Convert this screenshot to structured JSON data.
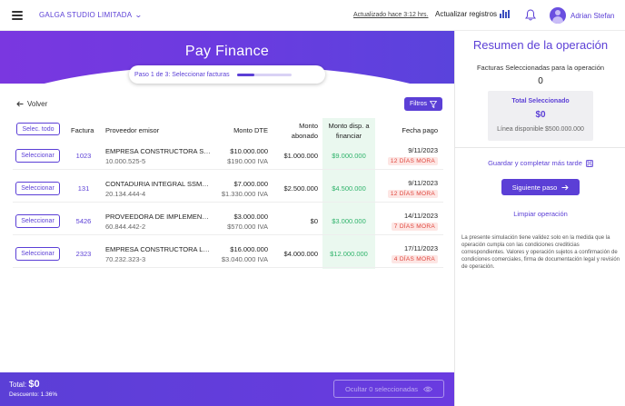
{
  "topbar": {
    "company": "GALGA STUDIO LIMITADA",
    "updated": "Actualizado hace 3:12 hrs.",
    "update_button": "Actualizar registros",
    "user_name": "Adrian Stefan"
  },
  "hero": {
    "title": "Pay Finance",
    "step_label": "Paso 1 de 3: Seleccionar facturas",
    "step_progress": 0.33
  },
  "toolbar": {
    "back_label": "Volver",
    "filter_label": "Filtros"
  },
  "table": {
    "select_all_label": "Selec. todo",
    "headers": {
      "factura": "Factura",
      "proveedor": "Proveedor emisor",
      "monto_dte": "Monto DTE",
      "abonado_1": "Monto",
      "abonado_2": "abonado",
      "disp_1": "Monto disp. a",
      "disp_2": "financiar",
      "fecha": "Fecha pago"
    },
    "rows": [
      {
        "button": "Seleccionar",
        "factura": "1023",
        "proveedor": "EMPRESA CONSTRUCTORA SPA",
        "rut": "10.000.525-5",
        "monto_dte": "$10.000.000",
        "iva": "$190.000 IVA",
        "abonado": "$1.000.000",
        "disponible": "$9.000.000",
        "fecha": "9/11/2023",
        "mora": "12 DÍAS MORA"
      },
      {
        "button": "Seleccionar",
        "factura": "131",
        "proveedor": "CONTADURIA INTEGRAL SSMM LTDA",
        "rut": "20.134.444-4",
        "monto_dte": "$7.000.000",
        "iva": "$1.330.000 IVA",
        "abonado": "$2.500.000",
        "disponible": "$4.500.000",
        "fecha": "9/11/2023",
        "mora": "12 DÍAS MORA"
      },
      {
        "button": "Seleccionar",
        "factura": "5426",
        "proveedor": "PROVEEDORA DE IMPLEMENTOS SPA",
        "rut": "60.844.442-2",
        "monto_dte": "$3.000.000",
        "iva": "$570.000 IVA",
        "abonado": "$0",
        "disponible": "$3.000.000",
        "fecha": "14/11/2023",
        "mora": "7 DÍAS MORA"
      },
      {
        "button": "Seleccionar",
        "factura": "2323",
        "proveedor": "EMPRESA CONSTRUCTORA LIMITADA",
        "rut": "70.232.323-3",
        "monto_dte": "$16.000.000",
        "iva": "$3.040.000 IVA",
        "abonado": "$4.000.000",
        "disponible": "$12.000.000",
        "fecha": "17/11/2023",
        "mora": "4 DÍAS MORA"
      }
    ]
  },
  "footer": {
    "total_label": "Total:",
    "total_value": "$0",
    "descuento": "Descuento: 1.36%",
    "ocultar_label": "Ocultar 0 seleccionadas"
  },
  "panel": {
    "title": "Resumen de la operación",
    "subtitle": "Facturas Seleccionadas para la operación",
    "count": "0",
    "total_label": "Total Seleccionado",
    "total_value": "$0",
    "disponible": "Línea disponible $500.000.000",
    "guardar": "Guardar y completar más tarde",
    "siguiente": "Siguiente paso",
    "limpiar": "Limpiar operación",
    "disclaimer": "La presente simulación tiene validez solo en la medida que la operación cumpla con las condiciones crediticias correspondientes. Valores y operación sujetos a confirmación de condiciones comerciales, firma de documentación legal y revisión de operación."
  },
  "colors": {
    "accent": "#5b3fd6",
    "positive": "#2fb36b",
    "danger": "#e0463d"
  },
  "icons": [
    "menu-icon",
    "chevron-down-icon",
    "sii-icon",
    "bell-icon",
    "avatar-icon",
    "arrow-left-icon",
    "filter-icon",
    "eye-icon",
    "save-icon",
    "arrow-right-icon"
  ]
}
